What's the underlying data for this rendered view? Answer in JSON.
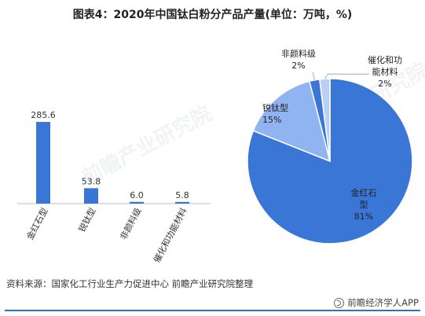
{
  "title": "图表4：2020年中国钛白粉分产品产量(单位：万吨，%)",
  "source": "资料来源：国家化工行业生产力促进中心 前瞻产业研究院整理",
  "brand": "前瞻经济学人APP",
  "watermark": "前瞻产业研究院",
  "colors": {
    "bar": "#3a76d6",
    "pie": [
      "#3a76d6",
      "#8fb4ef",
      "#3a76d6",
      "#b9cff3"
    ]
  },
  "chart_data": [
    {
      "type": "bar",
      "categories": [
        "金红石型",
        "锐钛型",
        "非颜料级",
        "催化和功能材料"
      ],
      "values": [
        285.6,
        53.8,
        6.0,
        5.8
      ],
      "value_labels": [
        "285.6",
        "53.8",
        "6.0",
        "5.8"
      ],
      "ylim": [
        0,
        300
      ],
      "grid": false
    },
    {
      "type": "pie",
      "labels": [
        "金红石型",
        "锐钛型",
        "非颜料级",
        "催化和功能材料"
      ],
      "values": [
        81,
        15,
        2,
        2
      ],
      "percent_labels": [
        "81%",
        "15%",
        "2%",
        "2%"
      ]
    }
  ]
}
